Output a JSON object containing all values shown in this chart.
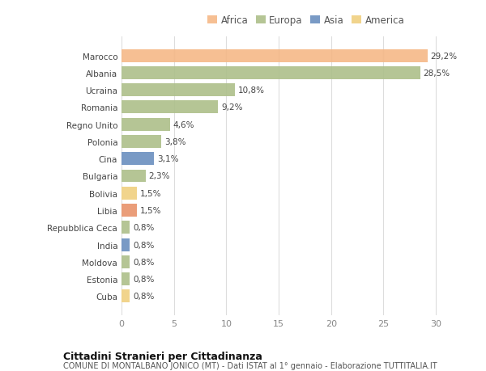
{
  "countries": [
    "Marocco",
    "Albania",
    "Ucraina",
    "Romania",
    "Regno Unito",
    "Polonia",
    "Cina",
    "Bulgaria",
    "Bolivia",
    "Libia",
    "Repubblica Ceca",
    "India",
    "Moldova",
    "Estonia",
    "Cuba"
  ],
  "values": [
    29.2,
    28.5,
    10.8,
    9.2,
    4.6,
    3.8,
    3.1,
    2.3,
    1.5,
    1.5,
    0.8,
    0.8,
    0.8,
    0.8,
    0.8
  ],
  "labels": [
    "29,2%",
    "28,5%",
    "10,8%",
    "9,2%",
    "4,6%",
    "3,8%",
    "3,1%",
    "2,3%",
    "1,5%",
    "1,5%",
    "0,8%",
    "0,8%",
    "0,8%",
    "0,8%",
    "0,8%"
  ],
  "colors": [
    "#F5B887",
    "#ADBF8A",
    "#ADBF8A",
    "#ADBF8A",
    "#ADBF8A",
    "#ADBF8A",
    "#6B8FBF",
    "#ADBF8A",
    "#F0D080",
    "#E8936A",
    "#ADBF8A",
    "#6B8FBF",
    "#ADBF8A",
    "#ADBF8A",
    "#F0D080"
  ],
  "legend_labels": [
    "Africa",
    "Europa",
    "Asia",
    "America"
  ],
  "legend_colors": [
    "#F5B887",
    "#ADBF8A",
    "#6B8FBF",
    "#F0D080"
  ],
  "title": "Cittadini Stranieri per Cittadinanza",
  "subtitle": "COMUNE DI MONTALBANO JONICO (MT) - Dati ISTAT al 1° gennaio - Elaborazione TUTTITALIA.IT",
  "xlim": [
    0,
    32
  ],
  "xticks": [
    0,
    5,
    10,
    15,
    20,
    25,
    30
  ],
  "bg_color": "#ffffff",
  "grid_color": "#dddddd",
  "bar_height": 0.75
}
